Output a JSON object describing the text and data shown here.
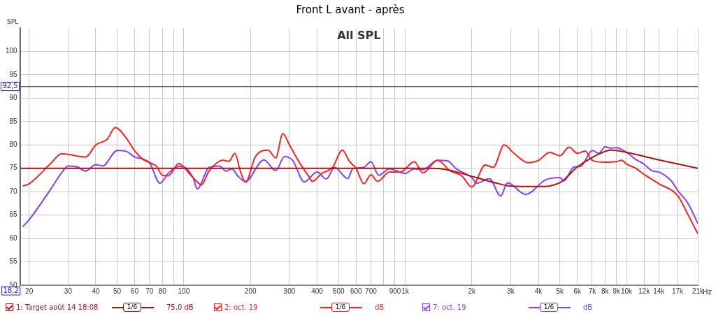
{
  "chart_data": {
    "type": "line",
    "title": "Front L avant - après",
    "ylabel": "SPL",
    "annotations": [
      "All SPL",
      "1/6",
      "75,0 dB",
      "1/6",
      "dB",
      "1/6",
      "dB"
    ],
    "xlim": [
      18.2,
      21000
    ],
    "ylim": [
      50,
      105
    ],
    "xticks": [
      20,
      30,
      40,
      50,
      60,
      70,
      80,
      {
        "value": 90,
        "label": null
      },
      100,
      200,
      300,
      400,
      500,
      600,
      700,
      {
        "value": 800,
        "label": null
      },
      900,
      {
        "value": 1000,
        "label": "1k"
      },
      {
        "value": 2000,
        "label": "2k"
      },
      {
        "value": 3000,
        "label": "3k"
      },
      {
        "value": 4000,
        "label": "4k"
      },
      {
        "value": 5000,
        "label": "5k"
      },
      {
        "value": 6000,
        "label": "6k"
      },
      {
        "value": 7000,
        "label": "7k"
      },
      {
        "value": 8000,
        "label": "8k"
      },
      {
        "value": 9000,
        "label": "9k"
      },
      {
        "value": 10000,
        "label": "10k"
      },
      {
        "value": 12000,
        "label": "12k"
      },
      {
        "value": 14000,
        "label": "14k"
      },
      {
        "value": 17000,
        "label": "17k"
      },
      {
        "value": 21000,
        "label": "21k"
      }
    ],
    "xlabel": "Hz",
    "yticks": [
      50,
      55,
      60,
      65,
      70,
      75,
      80,
      85,
      90,
      95,
      100
    ],
    "ref_lines": [
      {
        "axis": "y",
        "value": 92.5,
        "label": "92,5",
        "color": "#555555"
      },
      {
        "axis": "x",
        "value": 18.2,
        "label": "18,2",
        "color": "#555555"
      }
    ],
    "log": "x",
    "grid": true,
    "legend": "bottom",
    "marker": "none",
    "line_style": "solid",
    "series": [
      {
        "name": "1: Target août 14 18:08",
        "color": "#b01010",
        "x": [
          18.2,
          1300,
          1500,
          2000,
          2500,
          3000,
          4000,
          5000,
          6000,
          7000,
          8500,
          10000,
          14000,
          21000
        ],
        "values": [
          75,
          75,
          74.8,
          73.3,
          72,
          71.2,
          71.1,
          71.9,
          75.3,
          77.3,
          78.9,
          78.4,
          76.8,
          75
        ]
      },
      {
        "name": "2: oct. 19",
        "color": "#ff2020",
        "x": [
          18.7,
          20,
          25,
          28,
          30,
          33,
          36,
          40,
          45,
          49,
          55,
          60,
          65,
          70,
          75,
          80,
          85,
          95,
          100,
          110,
          120,
          130,
          150,
          160,
          170,
          180,
          190,
          210,
          240,
          260,
          280,
          300,
          330,
          370,
          380,
          420,
          470,
          520,
          560,
          575,
          600,
          650,
          700,
          750,
          850,
          950,
          1100,
          1200,
          1400,
          1600,
          1800,
          2000,
          2300,
          2500,
          2800,
          3100,
          3600,
          4000,
          4500,
          5000,
          5500,
          6000,
          6500,
          7000,
          8000,
          9000,
          9500,
          10000,
          11000,
          12000,
          14000,
          17000,
          19000,
          21000
        ],
        "values": [
          71.2,
          71.7,
          76,
          78.1,
          78,
          77.6,
          77.4,
          80,
          81.2,
          83.7,
          81.4,
          78.7,
          77,
          76.2,
          75.5,
          73.5,
          73.4,
          76,
          75.2,
          73,
          71.5,
          74.4,
          76.7,
          76.5,
          78.2,
          74.4,
          72,
          77.4,
          78.9,
          77.2,
          82.4,
          80,
          76.5,
          73,
          72.2,
          73.9,
          75.2,
          78.9,
          76.5,
          75.9,
          75,
          71.7,
          73.6,
          72.2,
          74.2,
          74.2,
          76.4,
          74,
          76.7,
          74.4,
          73.4,
          71,
          75.7,
          75.2,
          80,
          78.2,
          76.2,
          76.7,
          78.4,
          77.7,
          79.5,
          78.2,
          78.7,
          76.7,
          76.3,
          76.4,
          76.7,
          75.9,
          75,
          73.7,
          71.7,
          69.2,
          65,
          61
        ]
      },
      {
        "name": "7: oct. 19",
        "color": "#8040ff",
        "x": [
          18.7,
          20,
          25,
          28,
          30,
          33,
          36,
          40,
          43,
          50,
          55,
          60,
          65,
          70,
          78,
          85,
          95,
          100,
          110,
          115,
          130,
          145,
          155,
          165,
          175,
          190,
          230,
          260,
          285,
          310,
          350,
          400,
          440,
          480,
          550,
          580,
          650,
          700,
          760,
          850,
          1000,
          1100,
          1200,
          1400,
          1550,
          1700,
          2000,
          2100,
          2400,
          2700,
          2900,
          3500,
          4300,
          5000,
          5200,
          5800,
          6200,
          7000,
          7500,
          8000,
          8500,
          9000,
          10000,
          11000,
          12000,
          13000,
          14000,
          16000,
          17000,
          19000,
          21000
        ],
        "values": [
          62.5,
          64,
          70.5,
          74,
          75.5,
          75.3,
          74.4,
          75.8,
          75.5,
          78.8,
          78.6,
          77.4,
          77,
          76.2,
          71.8,
          73.9,
          75.4,
          75.3,
          73,
          70.6,
          75.2,
          75.5,
          74.4,
          74.9,
          73.4,
          72.2,
          76.8,
          74.5,
          77.5,
          76.7,
          72.1,
          74.2,
          72.7,
          75.2,
          72.8,
          74.9,
          75.2,
          76.4,
          73.5,
          74.9,
          73.9,
          74.9,
          74.7,
          76.7,
          76.6,
          74.9,
          73,
          71.8,
          72.8,
          69.1,
          71.9,
          69.4,
          72.5,
          73,
          72.3,
          75.3,
          75.4,
          78.8,
          78.2,
          79.6,
          79.3,
          79.4,
          78.4,
          76.9,
          75.9,
          74.5,
          74.2,
          72.2,
          70.3,
          67.4,
          63.2
        ]
      }
    ]
  }
}
